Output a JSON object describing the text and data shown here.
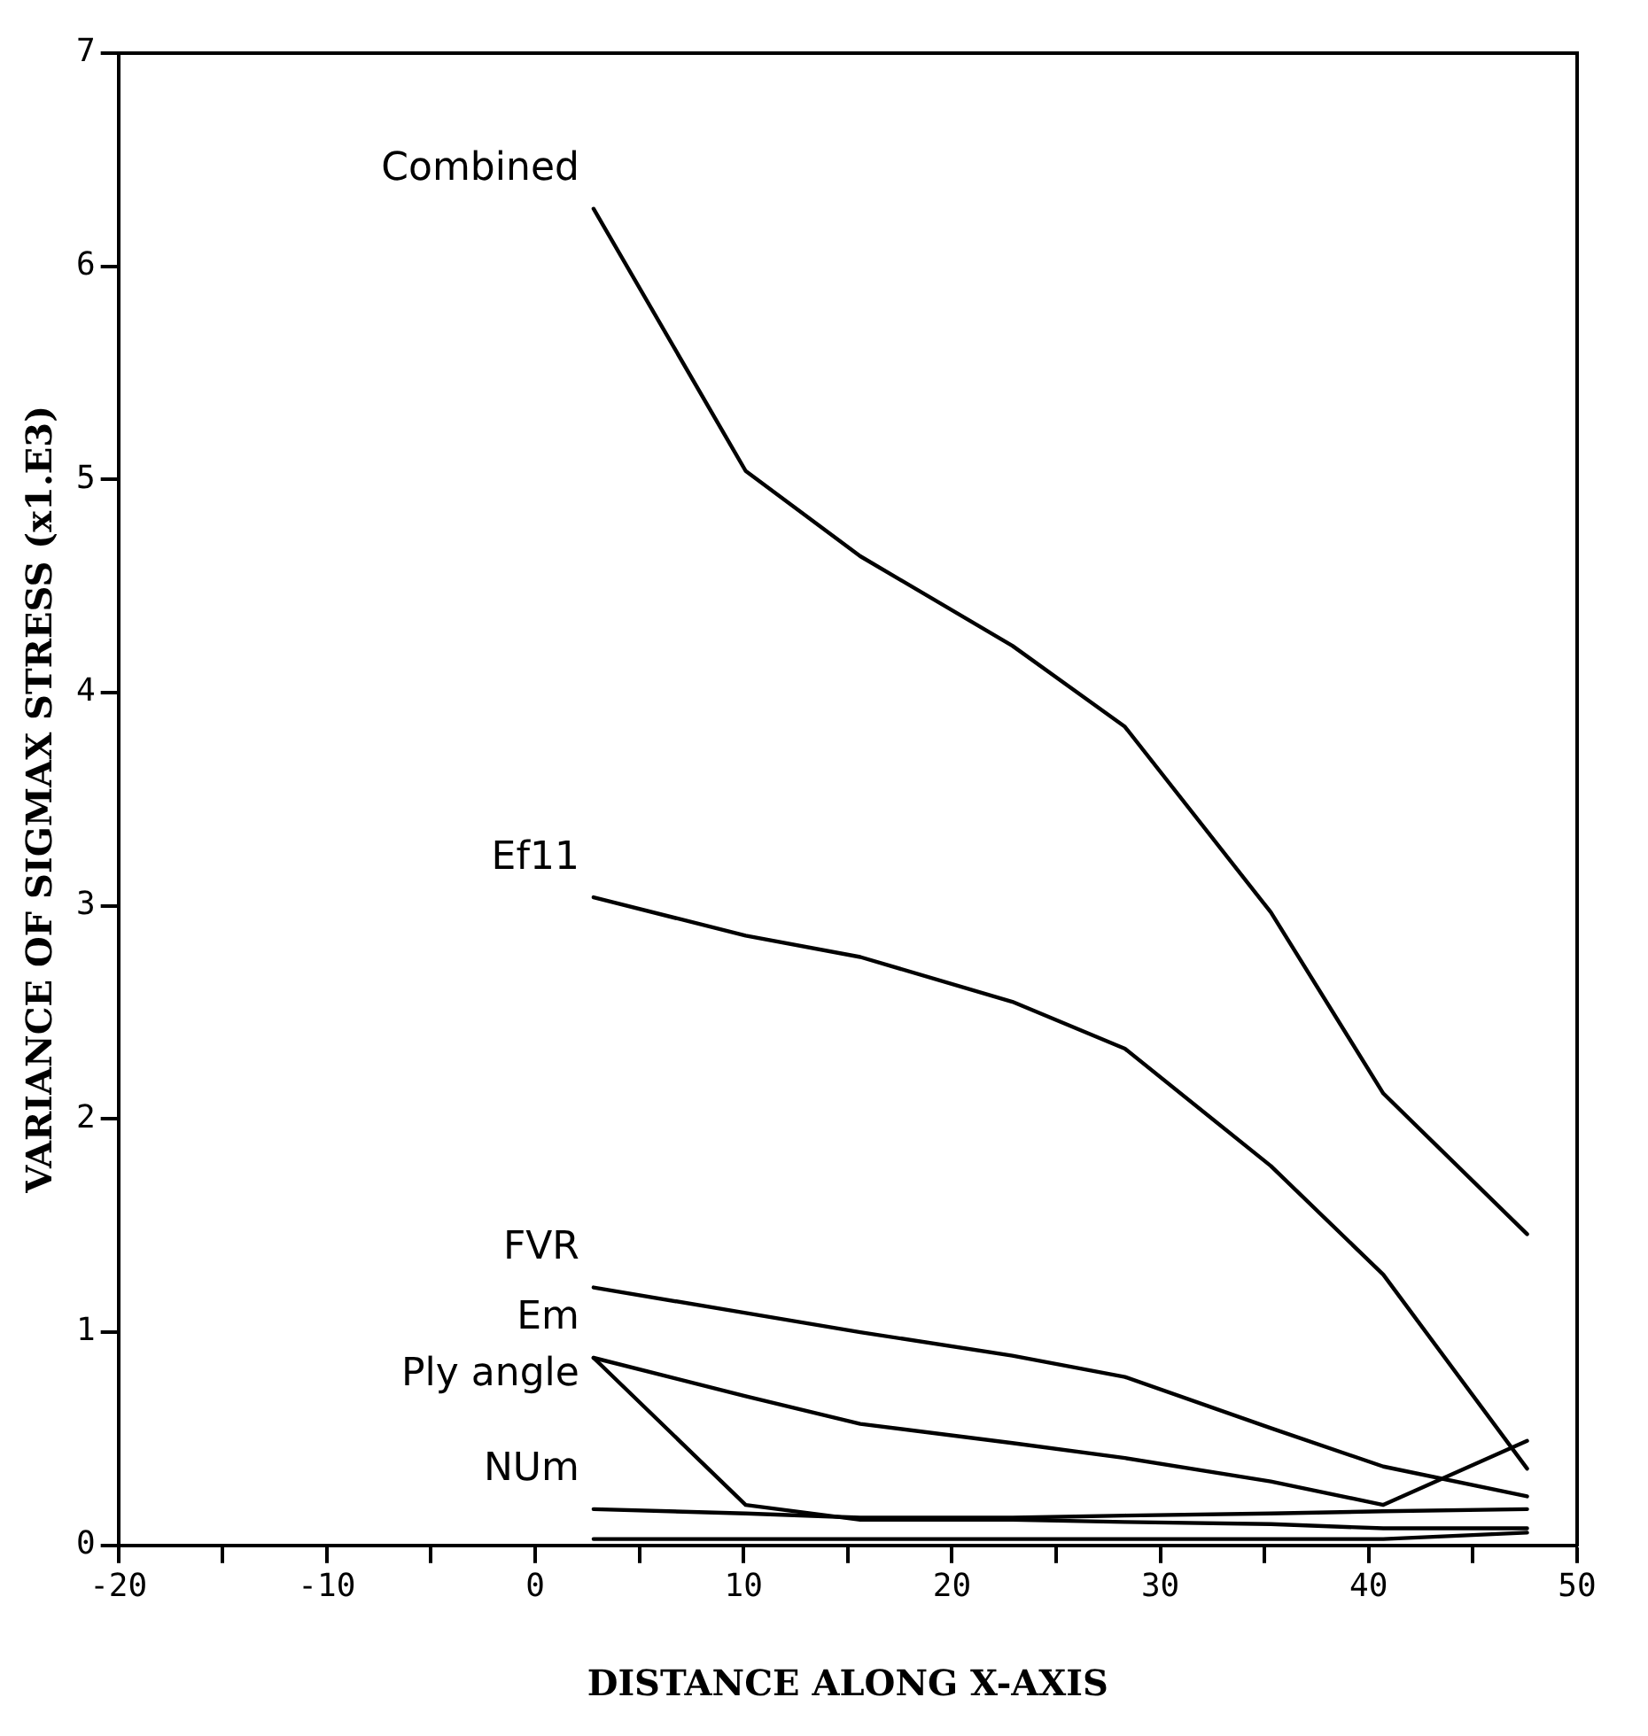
{
  "chart_data": {
    "type": "line",
    "xlabel": "DISTANCE ALONG X-AXIS",
    "ylabel": "VARIANCE OF SIGMAX STRESS (x1.E3)",
    "x": [
      2.8,
      10.1,
      15.6,
      22.9,
      28.3,
      35.3,
      40.7,
      47.6
    ],
    "xlim": [
      -20,
      50
    ],
    "xticks": [
      -20,
      {
        "value": -15,
        "label": null
      },
      -10,
      {
        "value": -5,
        "label": null
      },
      0,
      {
        "value": 5,
        "label": null
      },
      10,
      {
        "value": 15,
        "label": null
      },
      20,
      {
        "value": 25,
        "label": null
      },
      30,
      {
        "value": 35,
        "label": null
      },
      40,
      {
        "value": 45,
        "label": null
      },
      50
    ],
    "ylim": [
      0,
      7
    ],
    "yticks": [
      0,
      1,
      2,
      3,
      4,
      5,
      6,
      7
    ],
    "grid": false,
    "legend": false,
    "marker": "none",
    "line_style": "solid",
    "series": [
      {
        "name": "Combined",
        "color": "#000000",
        "values": [
          6.27,
          5.04,
          4.64,
          4.22,
          3.84,
          2.97,
          2.12,
          1.46
        ]
      },
      {
        "name": "Ef11",
        "color": "#000000",
        "values": [
          3.04,
          2.86,
          2.76,
          2.55,
          2.33,
          1.78,
          1.27,
          0.36
        ]
      },
      {
        "name": "FVR",
        "color": "#000000",
        "values": [
          1.21,
          1.09,
          1.0,
          0.89,
          0.79,
          0.55,
          0.37,
          0.23
        ]
      },
      {
        "name": "Em",
        "color": "#000000",
        "values": [
          0.88,
          0.7,
          0.57,
          0.48,
          0.41,
          0.3,
          0.19,
          0.49
        ]
      },
      {
        "name": "Ply angle",
        "color": "#000000",
        "values": [
          0.88,
          0.19,
          0.12,
          0.12,
          0.11,
          0.1,
          0.08,
          0.08
        ]
      },
      {
        "name": "NUm",
        "color": "#000000",
        "values": [
          0.17,
          0.15,
          0.13,
          0.13,
          0.14,
          0.15,
          0.16,
          0.17
        ]
      },
      {
        "color": "#000000",
        "values": [
          0.03,
          0.03,
          0.03,
          0.03,
          0.03,
          0.03,
          0.03,
          0.06
        ]
      }
    ]
  }
}
